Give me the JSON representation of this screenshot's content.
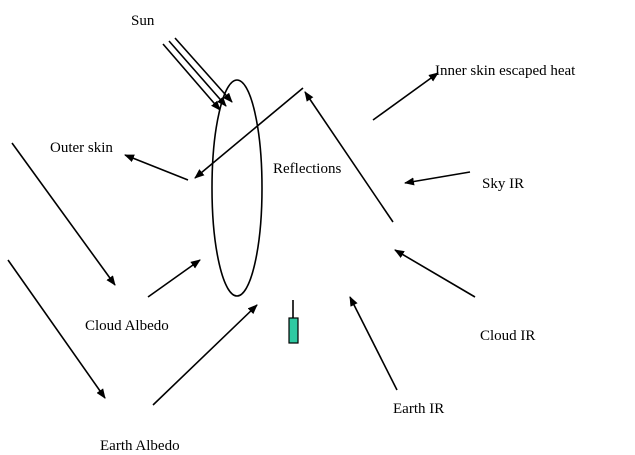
{
  "labels": {
    "sun": "Sun",
    "inner_skin": "Inner skin escaped heat",
    "outer_skin": "Outer skin",
    "reflections": "Reflections",
    "sky_ir": "Sky IR",
    "cloud_albedo": "Cloud Albedo",
    "cloud_ir": "Cloud IR",
    "earth_ir": "Earth IR",
    "earth_albedo": "Earth Albedo"
  }
}
